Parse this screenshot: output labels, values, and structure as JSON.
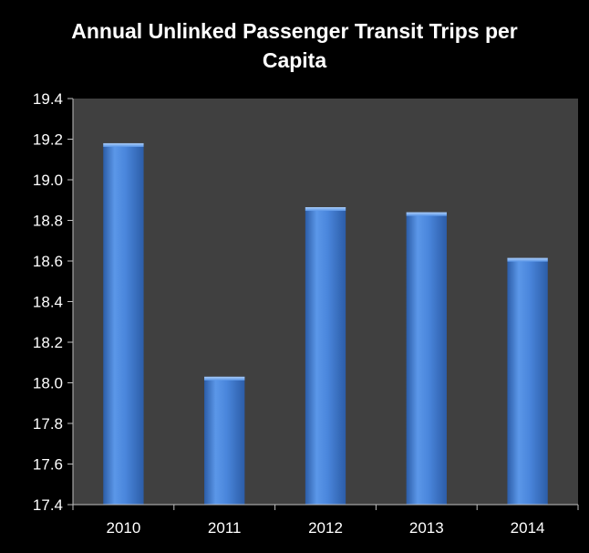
{
  "chart_data": {
    "type": "bar",
    "title_lines": [
      "Annual Unlinked Passenger Transit Trips per",
      "Capita"
    ],
    "categories": [
      "2010",
      "2011",
      "2012",
      "2013",
      "2014"
    ],
    "values": [
      19.18,
      18.03,
      18.865,
      18.84,
      18.615
    ],
    "ylim": [
      17.4,
      19.4
    ],
    "yticks": [
      "17.4",
      "17.6",
      "17.8",
      "18.0",
      "18.2",
      "18.4",
      "18.6",
      "18.8",
      "19.0",
      "19.2",
      "19.4"
    ],
    "grid": false,
    "legend": "none",
    "colors": {
      "background": "#000000",
      "plot_area": "#404040",
      "bar_light": "#7fb0ee",
      "bar_mid": "#4a86dc",
      "bar_dark": "#2c5da8",
      "axis": "#bfbfbf",
      "text": "#ffffff"
    }
  }
}
